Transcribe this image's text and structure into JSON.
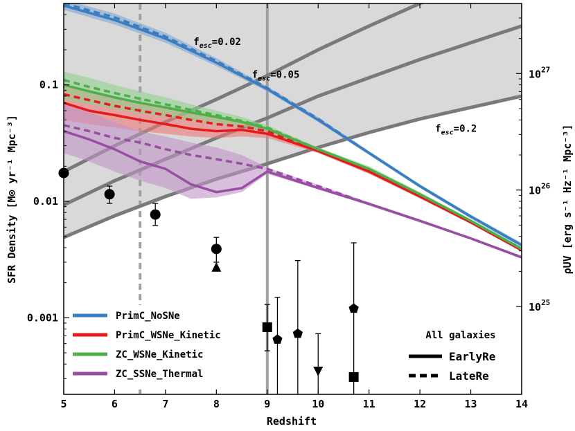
{
  "chart_data": {
    "type": "line",
    "xlabel": "Redshift",
    "ylabel": "SFR Density [M⊙ yr⁻¹ Mpc⁻³]",
    "ylabel_right": "ρUV [erg s⁻¹ Hz⁻¹ Mpc⁻³]",
    "xlim": [
      5,
      14
    ],
    "ylim": [
      0.00022,
      0.5
    ],
    "yscale": "log",
    "x_ticks": [
      5,
      6,
      7,
      8,
      9,
      10,
      11,
      12,
      13,
      14
    ],
    "x_tick_labels": [
      "5",
      "6",
      "7",
      "8",
      "9",
      "10",
      "11",
      "12",
      "13",
      "14"
    ],
    "y_ticks": [
      0.001,
      0.01,
      0.1
    ],
    "y_tick_labels": [
      "0.001",
      "0.01",
      "0.1"
    ],
    "right_ticks": [
      {
        "y": 0.00125,
        "base": "10",
        "exp": "25"
      },
      {
        "y": 0.0125,
        "base": "10",
        "exp": "26"
      },
      {
        "y": 0.125,
        "base": "10",
        "exp": "27"
      }
    ],
    "vertical_lines": [
      {
        "x": 6.5,
        "style": "dashed",
        "color": "#a0a0a0"
      },
      {
        "x": 9.0,
        "style": "solid",
        "color": "#a0a0a0"
      }
    ],
    "fesc_curves": [
      {
        "label_base": "f",
        "label_sub": "esc",
        "label_value": "=0.02",
        "label_x": 7.55,
        "label_y": 0.22,
        "x": [
          5,
          6,
          7,
          8,
          9,
          10,
          11,
          12,
          13,
          14
        ],
        "y": [
          0.018,
          0.03,
          0.048,
          0.075,
          0.12,
          0.2,
          0.32,
          0.5,
          0.8,
          1.3
        ]
      },
      {
        "label_base": "f",
        "label_sub": "esc",
        "label_value": "=0.05",
        "label_x": 8.7,
        "label_y": 0.115,
        "x": [
          5,
          6,
          7,
          8,
          9,
          10,
          11,
          12,
          13,
          14
        ],
        "y": [
          0.0093,
          0.015,
          0.023,
          0.035,
          0.052,
          0.08,
          0.115,
          0.165,
          0.23,
          0.32
        ]
      },
      {
        "label_base": "f",
        "label_sub": "esc",
        "label_value": "=0.2",
        "label_x": 12.3,
        "label_y": 0.0395,
        "x": [
          5,
          6,
          7,
          8,
          9,
          10,
          11,
          12,
          13,
          14
        ],
        "y": [
          0.0049,
          0.0075,
          0.011,
          0.0155,
          0.021,
          0.029,
          0.039,
          0.051,
          0.064,
          0.08
        ]
      }
    ],
    "series": [
      {
        "name": "PrimC_NoSNe",
        "color": "#3a7dc0",
        "band_color": "#7ea6d4",
        "x": [
          5,
          6,
          7,
          8,
          9,
          10,
          11,
          12,
          13,
          14
        ],
        "y": [
          0.48,
          0.36,
          0.25,
          0.155,
          0.092,
          0.05,
          0.026,
          0.0135,
          0.0074,
          0.0042
        ],
        "y_late": [
          0.5,
          0.38,
          0.26,
          0.16,
          0.094,
          0.051,
          0.026,
          0.0135,
          0.0074,
          0.0042
        ],
        "lo": [
          0.44,
          0.33,
          0.23,
          0.145,
          0.088,
          0.048,
          0.025,
          0.013,
          0.0071,
          0.004
        ],
        "hi": [
          0.54,
          0.41,
          0.28,
          0.17,
          0.097,
          0.053,
          0.027,
          0.014,
          0.0077,
          0.0044
        ]
      },
      {
        "name": "PrimC_WSNe_Kinetic",
        "color": "#e41a1c",
        "band_color": "#ee7878",
        "x": [
          5,
          5.5,
          6,
          6.5,
          7,
          7.5,
          8,
          8.5,
          9,
          10,
          11,
          12,
          13,
          14
        ],
        "y": [
          0.07,
          0.06,
          0.055,
          0.05,
          0.046,
          0.042,
          0.04,
          0.041,
          0.038,
          0.027,
          0.018,
          0.011,
          0.0066,
          0.0038
        ],
        "y_late": [
          0.083,
          0.074,
          0.066,
          0.06,
          0.055,
          0.05,
          0.046,
          0.044,
          0.04,
          0.028,
          0.018,
          0.011,
          0.0066,
          0.0038
        ],
        "lo": [
          0.05,
          0.046,
          0.043,
          0.04,
          0.038,
          0.036,
          0.035,
          0.036,
          0.035,
          0.026,
          0.0172,
          0.0106,
          0.0064,
          0.0037
        ],
        "hi": [
          0.1,
          0.09,
          0.08,
          0.072,
          0.065,
          0.058,
          0.052,
          0.048,
          0.042,
          0.029,
          0.0188,
          0.0114,
          0.0068,
          0.0039
        ]
      },
      {
        "name": "ZC_WSNe_Kinetic",
        "color": "#4daf4a",
        "band_color": "#8fd18c",
        "x": [
          5,
          5.5,
          6,
          6.5,
          7,
          7.5,
          8,
          8.5,
          9,
          10,
          11,
          12,
          13,
          14
        ],
        "y": [
          0.1,
          0.088,
          0.078,
          0.07,
          0.064,
          0.058,
          0.053,
          0.048,
          0.042,
          0.028,
          0.019,
          0.0115,
          0.0068,
          0.0039
        ],
        "y_late": [
          0.11,
          0.096,
          0.085,
          0.076,
          0.068,
          0.061,
          0.055,
          0.049,
          0.043,
          0.028,
          0.019,
          0.0115,
          0.0068,
          0.0039
        ],
        "lo": [
          0.075,
          0.068,
          0.062,
          0.057,
          0.053,
          0.049,
          0.046,
          0.044,
          0.04,
          0.027,
          0.018,
          0.011,
          0.0066,
          0.0038
        ],
        "hi": [
          0.13,
          0.115,
          0.1,
          0.088,
          0.078,
          0.068,
          0.06,
          0.053,
          0.045,
          0.029,
          0.02,
          0.012,
          0.007,
          0.004
        ]
      },
      {
        "name": "ZC_SSNe_Thermal",
        "color": "#984ea3",
        "band_color": "#c193c8",
        "x": [
          5,
          5.5,
          6,
          6.5,
          7,
          7.5,
          8,
          8.5,
          9,
          10,
          11,
          12,
          13,
          14
        ],
        "y": [
          0.04,
          0.034,
          0.028,
          0.022,
          0.019,
          0.014,
          0.012,
          0.013,
          0.018,
          0.013,
          0.0095,
          0.0068,
          0.0048,
          0.0033
        ],
        "y_late": [
          0.045,
          0.04,
          0.035,
          0.032,
          0.028,
          0.025,
          0.023,
          0.021,
          0.019,
          0.0135,
          0.0095,
          0.0068,
          0.0048,
          0.0033
        ],
        "lo": [
          0.026,
          0.022,
          0.018,
          0.015,
          0.013,
          0.0105,
          0.0108,
          0.012,
          0.0172,
          0.0127,
          0.0092,
          0.0066,
          0.0047,
          0.0032
        ],
        "hi": [
          0.068,
          0.058,
          0.048,
          0.04,
          0.036,
          0.032,
          0.029,
          0.025,
          0.0195,
          0.0138,
          0.0098,
          0.007,
          0.0049,
          0.0034
        ]
      }
    ],
    "observations": [
      {
        "marker": "circle",
        "x": 5.0,
        "y": 0.0175,
        "lo": 0.0175,
        "hi": 0.0175
      },
      {
        "marker": "circle",
        "x": 5.9,
        "y": 0.0115,
        "lo": 0.0096,
        "hi": 0.0135
      },
      {
        "marker": "circle",
        "x": 6.8,
        "y": 0.0077,
        "lo": 0.0062,
        "hi": 0.0096
      },
      {
        "marker": "circle",
        "x": 8.0,
        "y": 0.0039,
        "lo": 0.003,
        "hi": 0.0049
      },
      {
        "marker": "triangle-up",
        "x": 8.0,
        "y": 0.0027,
        "lo": 0.0027,
        "hi": 0.0027
      },
      {
        "marker": "square",
        "x": 9.0,
        "y": 0.00083,
        "lo": 0.00052,
        "hi": 0.0013
      },
      {
        "marker": "pentagon",
        "x": 9.2,
        "y": 0.00065,
        "lo": 0.00022,
        "hi": 0.0015
      },
      {
        "marker": "pentagon",
        "x": 9.6,
        "y": 0.00073,
        "lo": 0.00022,
        "hi": 0.0031
      },
      {
        "marker": "triangle-down",
        "x": 10.0,
        "y": 0.00035,
        "lo": 0.00022,
        "hi": 0.00073
      },
      {
        "marker": "square",
        "x": 10.7,
        "y": 0.00031,
        "lo": 0.00022,
        "hi": 0.0044
      },
      {
        "marker": "pentagon",
        "x": 10.7,
        "y": 0.0012,
        "lo": 0.0012,
        "hi": 0.0012
      }
    ],
    "legend": {
      "position": "lower-left",
      "entries": [
        "PrimC_NoSNe",
        "PrimC_WSNe_Kinetic",
        "ZC_WSNe_Kinetic",
        "ZC_SSNe_Thermal"
      ]
    },
    "style_legend": {
      "position": "lower-right",
      "title": "All galaxies",
      "entries": [
        {
          "label": "EarlyRe",
          "style": "solid"
        },
        {
          "label": "LateRe",
          "style": "dashed"
        }
      ]
    }
  }
}
